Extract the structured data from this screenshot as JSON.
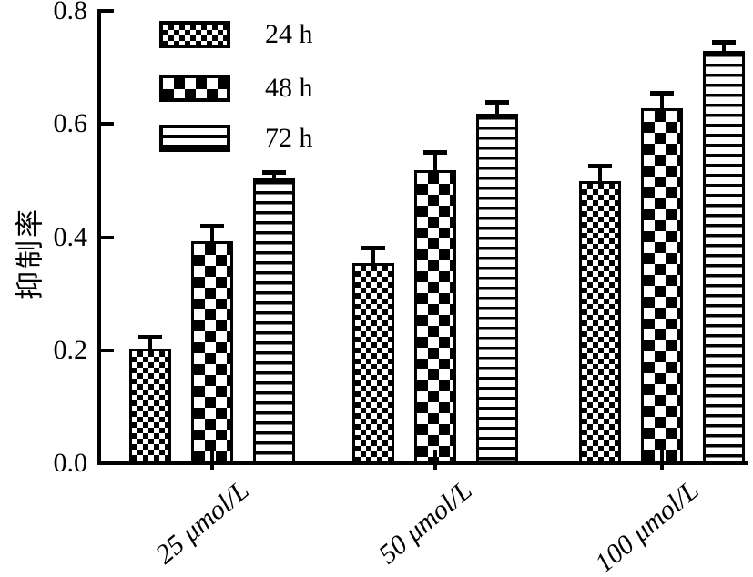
{
  "chart_data": {
    "type": "bar",
    "title": "",
    "ylabel": "抑制率",
    "xlabel": "",
    "ylim": [
      0.0,
      0.8
    ],
    "yticks": [
      0.0,
      0.2,
      0.4,
      0.6,
      0.8
    ],
    "ytick_labels": [
      "0.0",
      "0.2",
      "0.4",
      "0.6",
      "0.8"
    ],
    "categories": [
      "25 μmol/L",
      "50 μmol/L",
      "100 μmol/L"
    ],
    "series": [
      {
        "name": "24 h",
        "pattern": "fine-checkerboard",
        "values": [
          0.205,
          0.355,
          0.5
        ],
        "errors": [
          0.02,
          0.025,
          0.025
        ]
      },
      {
        "name": "48 h",
        "pattern": "large-checkerboard",
        "values": [
          0.395,
          0.52,
          0.63
        ],
        "errors": [
          0.025,
          0.03,
          0.025
        ]
      },
      {
        "name": "72 h",
        "pattern": "horizontal-stripes",
        "values": [
          0.505,
          0.62,
          0.73
        ],
        "errors": [
          0.01,
          0.02,
          0.015
        ]
      }
    ],
    "error_bars": true,
    "legend_position": "top-left",
    "grid": false,
    "colors": {
      "foreground": "#000000",
      "background": "#ffffff"
    }
  }
}
